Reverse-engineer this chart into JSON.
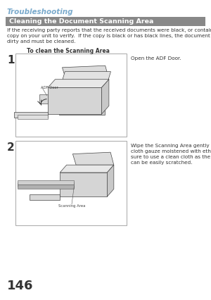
{
  "page_bg": "#ffffff",
  "page_number": "146",
  "section_title": "Troubleshooting",
  "section_title_color": "#7aaacc",
  "header_text": "Cleaning the Document Scanning Area",
  "header_bg": "#888888",
  "header_text_color": "#ffffff",
  "body_text": "If the receiving party reports that the received documents were black, or contained black lines, try making a\ncopy on your unit to verify.  If the copy is black or has black lines, the document Scanning Area is probably\ndirty and must be cleaned.",
  "subheader": "To clean the Scanning Area",
  "step1_number": "1",
  "step1_label": "ADF Door",
  "step1_instruction": "Open the ADF Door.",
  "step2_number": "2",
  "step2_label": "Scanning Area",
  "step2_instruction": "Wipe the Scanning Area gently with a soft\ncloth gauze moistened with ethyl alcohol.  Be\nsure to use a clean cloth as the scanning area\ncan be easily scratched.",
  "box_border_color": "#999999",
  "box_bg": "#ffffff",
  "label_color": "#555555",
  "text_color": "#333333",
  "body_font_size": 5.2,
  "step_font_size": 11,
  "instruction_font_size": 5.2,
  "subheader_font_size": 5.5,
  "page_num_font_size": 13,
  "section_title_fontsize": 7.5
}
